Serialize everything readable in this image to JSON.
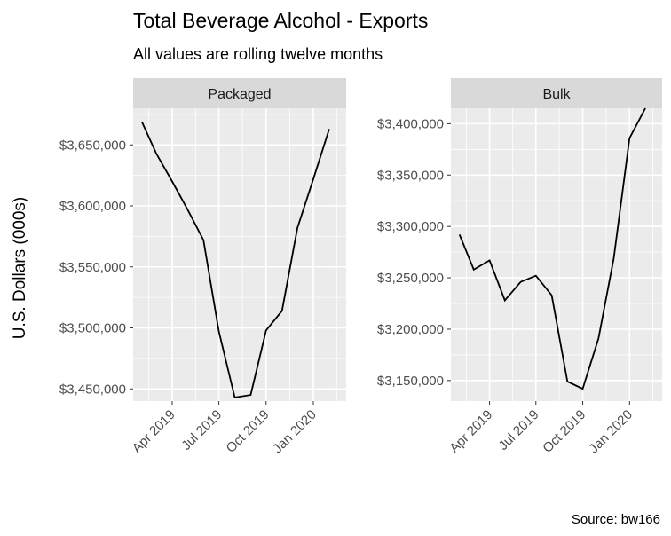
{
  "title": "Total Beverage Alcohol - Exports",
  "subtitle": "All values are rolling twelve months",
  "ylabel": "U.S. Dollars (000s)",
  "caption": "Source: bw166",
  "chart_data": [
    {
      "type": "line",
      "panel": "Packaged",
      "x_tick_labels": [
        "Apr 2019",
        "Jul 2019",
        "Oct 2019",
        "Jan 2020"
      ],
      "x_ticks": [
        "2019-04",
        "2019-07",
        "2019-10",
        "2020-01"
      ],
      "y_tick_labels": [
        "$3,450,000",
        "$3,500,000",
        "$3,550,000",
        "$3,600,000",
        "$3,650,000"
      ],
      "y_ticks": [
        3450000,
        3500000,
        3550000,
        3600000,
        3650000
      ],
      "ylim": [
        3440000,
        3680000
      ],
      "x": [
        "2019-02",
        "2019-03",
        "2019-04",
        "2019-05",
        "2019-06",
        "2019-07",
        "2019-08",
        "2019-09",
        "2019-10",
        "2019-11",
        "2019-12",
        "2020-01",
        "2020-02"
      ],
      "values": [
        3669000,
        3643000,
        3620000,
        3597000,
        3572000,
        3497000,
        3443000,
        3445000,
        3498000,
        3514000,
        3582000,
        3622000,
        3663000
      ]
    },
    {
      "type": "line",
      "panel": "Bulk",
      "x_tick_labels": [
        "Apr 2019",
        "Jul 2019",
        "Oct 2019",
        "Jan 2020"
      ],
      "x_ticks": [
        "2019-04",
        "2019-07",
        "2019-10",
        "2020-01"
      ],
      "y_tick_labels": [
        "$3,150,000",
        "$3,200,000",
        "$3,250,000",
        "$3,300,000",
        "$3,350,000",
        "$3,400,000"
      ],
      "y_ticks": [
        3150000,
        3200000,
        3250000,
        3300000,
        3350000,
        3400000
      ],
      "ylim": [
        3130000,
        3415000
      ],
      "x": [
        "2019-02",
        "2019-03",
        "2019-04",
        "2019-05",
        "2019-06",
        "2019-07",
        "2019-08",
        "2019-09",
        "2019-10",
        "2019-11",
        "2019-12",
        "2020-01",
        "2020-02"
      ],
      "values": [
        3292000,
        3258000,
        3267000,
        3228000,
        3246000,
        3252000,
        3233000,
        3149000,
        3142000,
        3191000,
        3269000,
        3386000,
        3415000
      ]
    }
  ]
}
